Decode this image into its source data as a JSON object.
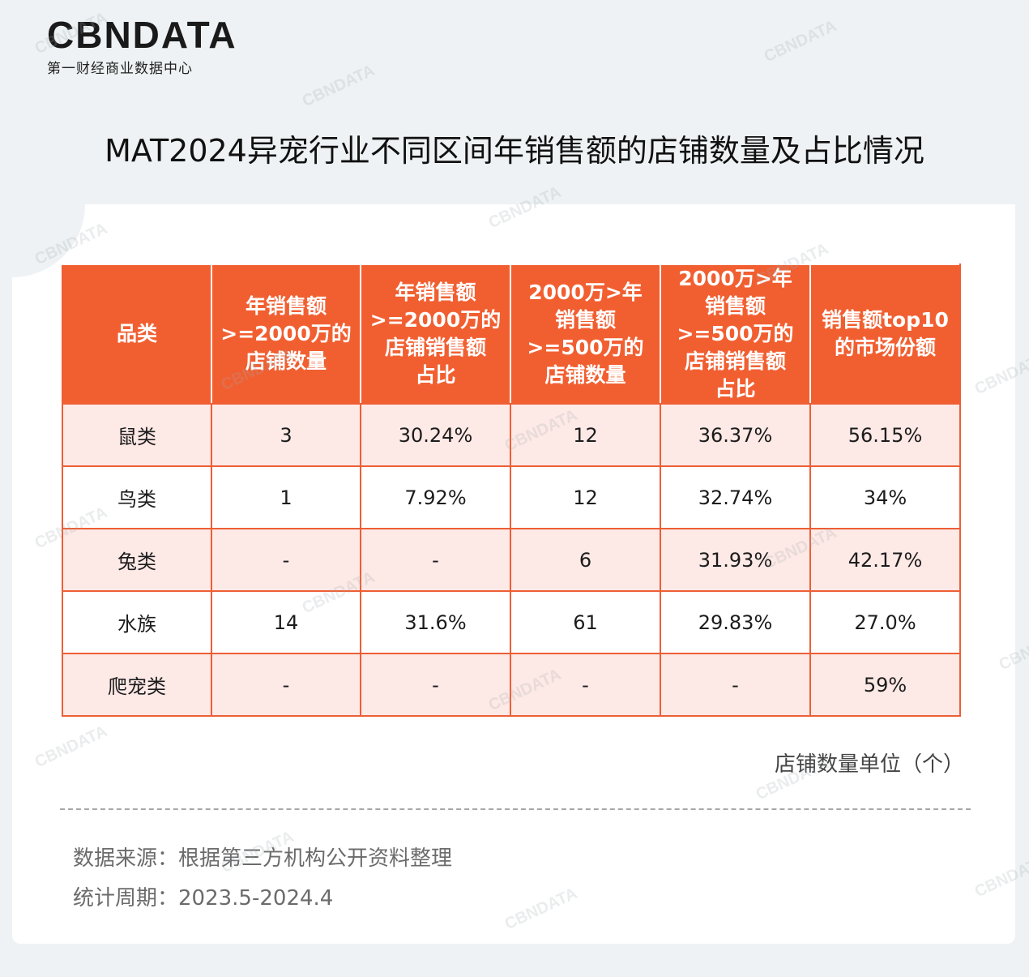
{
  "brand": {
    "logo_text": "CBNDATA",
    "logo_subtitle": "第一财经商业数据中心",
    "watermark_text": "CBNDATA"
  },
  "title": "MAT2024异宠行业不同区间年销售额的店铺数量及占比情况",
  "colors": {
    "header_bg": "#f15f31",
    "row_tint": "#fde9e6",
    "border": "#ee5e35"
  },
  "chart_data": {
    "type": "table",
    "columns": [
      "品类",
      "年销售额>=2000万的店铺数量",
      "年销售额>=2000万的店铺销售额占比",
      "2000万>年销售额>=500万的店铺数量",
      "2000万>年销售额>=500万的店铺销售额占比",
      "销售额top10的市场份额"
    ],
    "header_lines": [
      [
        "品类"
      ],
      [
        "年销售额",
        ">=2000万的",
        "店铺数量"
      ],
      [
        "年销售额",
        ">=2000万的",
        "店铺销售额",
        "占比"
      ],
      [
        "2000万>年",
        "销售额",
        ">=500万的",
        "店铺数量"
      ],
      [
        "2000万>年",
        "销售额",
        ">=500万的",
        "店铺销售额",
        "占比"
      ],
      [
        "销售额top10",
        "的市场份额"
      ]
    ],
    "rows": [
      [
        "鼠类",
        "3",
        "30.24%",
        "12",
        "36.37%",
        "56.15%"
      ],
      [
        "鸟类",
        "1",
        "7.92%",
        "12",
        "32.74%",
        "34%"
      ],
      [
        "兔类",
        "-",
        "-",
        "6",
        "31.93%",
        "42.17%"
      ],
      [
        "水族",
        "14",
        "31.6%",
        "61",
        "29.83%",
        "27.0%"
      ],
      [
        "爬宠类",
        "-",
        "-",
        "-",
        "-",
        "59%"
      ]
    ]
  },
  "unit_note": "店铺数量单位（个）",
  "footer": {
    "source": "数据来源：根据第三方机构公开资料整理",
    "period": "统计周期：2023.5-2024.4"
  }
}
